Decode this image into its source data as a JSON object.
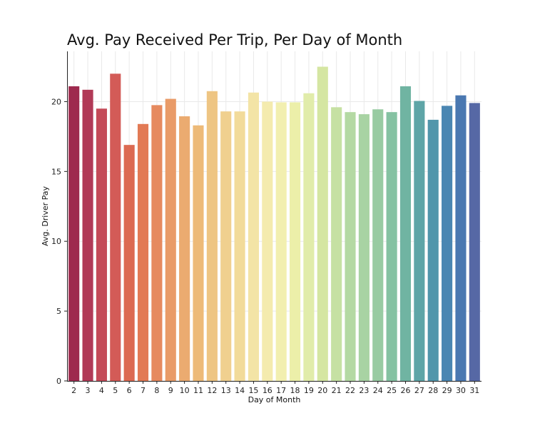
{
  "chart_data": {
    "type": "bar",
    "title": "Avg. Pay Received Per Trip, Per Day of Month",
    "xlabel": "Day of Month",
    "ylabel": "Avg. Driver Pay",
    "ylim": [
      0,
      23.6
    ],
    "yticks": [
      0,
      5,
      10,
      15,
      20
    ],
    "grid": true,
    "legend": "none",
    "categories": [
      "2",
      "3",
      "4",
      "5",
      "6",
      "7",
      "8",
      "9",
      "10",
      "11",
      "12",
      "13",
      "14",
      "15",
      "16",
      "17",
      "18",
      "19",
      "20",
      "21",
      "22",
      "23",
      "24",
      "25",
      "26",
      "27",
      "28",
      "29",
      "30",
      "31"
    ],
    "values": [
      21.1,
      20.85,
      19.5,
      22.0,
      16.9,
      18.4,
      19.75,
      20.2,
      18.95,
      18.3,
      20.75,
      19.3,
      19.3,
      20.65,
      20.0,
      19.95,
      19.95,
      20.6,
      22.5,
      19.6,
      19.25,
      19.1,
      19.45,
      19.25,
      21.1,
      20.05,
      18.7,
      19.7,
      20.45,
      19.9
    ],
    "colors": [
      "#9e2a4e",
      "#b13a57",
      "#c44a58",
      "#d35b57",
      "#dc6a52",
      "#e27a55",
      "#e68a5f",
      "#e99b68",
      "#ebab70",
      "#edba78",
      "#eec583",
      "#f0d08f",
      "#f2db9a",
      "#f3e4a6",
      "#f4ebae",
      "#f2efb0",
      "#ecefa9",
      "#e1ecaa",
      "#d5e6a2",
      "#c6e1a3",
      "#b4d9a3",
      "#a8d3a3",
      "#98cba2",
      "#85c2a2",
      "#70b4a2",
      "#5ea5a7",
      "#5196ab",
      "#4a86b2",
      "#4a78b1",
      "#5668a5"
    ]
  }
}
